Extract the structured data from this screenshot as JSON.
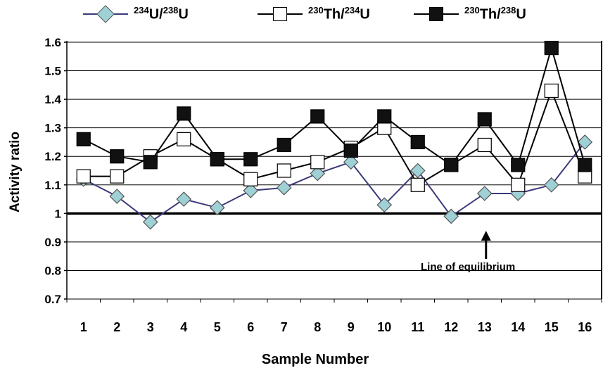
{
  "chart_data": {
    "type": "line",
    "x": [
      "1",
      "2",
      "3",
      "4",
      "5",
      "6",
      "7",
      "8",
      "9",
      "10",
      "11",
      "12",
      "13",
      "14",
      "15",
      "16"
    ],
    "xlabel": "Sample Number",
    "ylabel": "Activity ratio",
    "ylim": [
      0.7,
      1.6
    ],
    "yticks": [
      "0.7",
      "0.8",
      "0.9",
      "1",
      "1.1",
      "1.2",
      "1.3",
      "1.4",
      "1.5",
      "1.6"
    ],
    "grid": true,
    "legend_position": "top",
    "reference_line": {
      "value": 1.0,
      "label": "Line of equilibrium"
    },
    "series": [
      {
        "name_mass1": "234",
        "name_el1": "U",
        "name_mass2": "238",
        "name_el2": "U",
        "marker": "diamond",
        "line_color": "#3a3a7a",
        "marker_fill": "#9ed0d6",
        "values": [
          1.12,
          1.06,
          0.97,
          1.05,
          1.02,
          1.08,
          1.09,
          1.14,
          1.18,
          1.03,
          1.15,
          0.99,
          1.07,
          1.07,
          1.1,
          1.25
        ]
      },
      {
        "name_mass1": "230",
        "name_el1": "Th",
        "name_mass2": "234",
        "name_el2": "U",
        "marker": "square-open",
        "line_color": "#000000",
        "marker_fill": "#ffffff",
        "values": [
          1.13,
          1.13,
          1.2,
          1.26,
          1.19,
          1.12,
          1.15,
          1.18,
          1.23,
          1.3,
          1.1,
          1.17,
          1.24,
          1.1,
          1.43,
          1.13
        ]
      },
      {
        "name_mass1": "230",
        "name_el1": "Th",
        "name_mass2": "238",
        "name_el2": "U",
        "marker": "square-filled",
        "line_color": "#000000",
        "marker_fill": "#111111",
        "values": [
          1.26,
          1.2,
          1.18,
          1.35,
          1.19,
          1.19,
          1.24,
          1.34,
          1.22,
          1.34,
          1.25,
          1.17,
          1.33,
          1.17,
          1.58,
          1.17
        ]
      }
    ]
  }
}
